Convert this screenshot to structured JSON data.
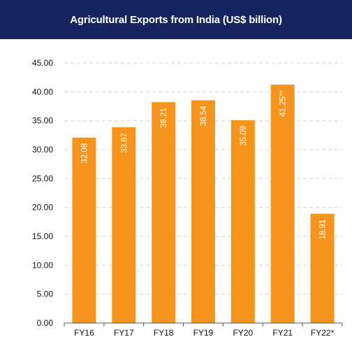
{
  "chart_data": {
    "type": "bar",
    "title": "Agricultural Exports from India (US$ billion)",
    "categories": [
      "FY16",
      "FY17",
      "FY18",
      "FY19",
      "FY20",
      "FY21",
      "FY22*"
    ],
    "values": [
      32.08,
      33.87,
      38.21,
      38.54,
      35.09,
      41.25,
      18.91
    ],
    "data_labels": [
      "32.08",
      "33.87",
      "38.21",
      "38.54",
      "35.09",
      "41.25**",
      "18.91"
    ],
    "y_ticks": [
      "0.00",
      "5.00",
      "10.00",
      "15.00",
      "20.00",
      "25.00",
      "30.00",
      "35.00",
      "40.00",
      "45.00"
    ],
    "ylim": [
      0,
      45
    ],
    "grid": true,
    "bar_color": "#f7941d",
    "header_color": "#15245e"
  }
}
